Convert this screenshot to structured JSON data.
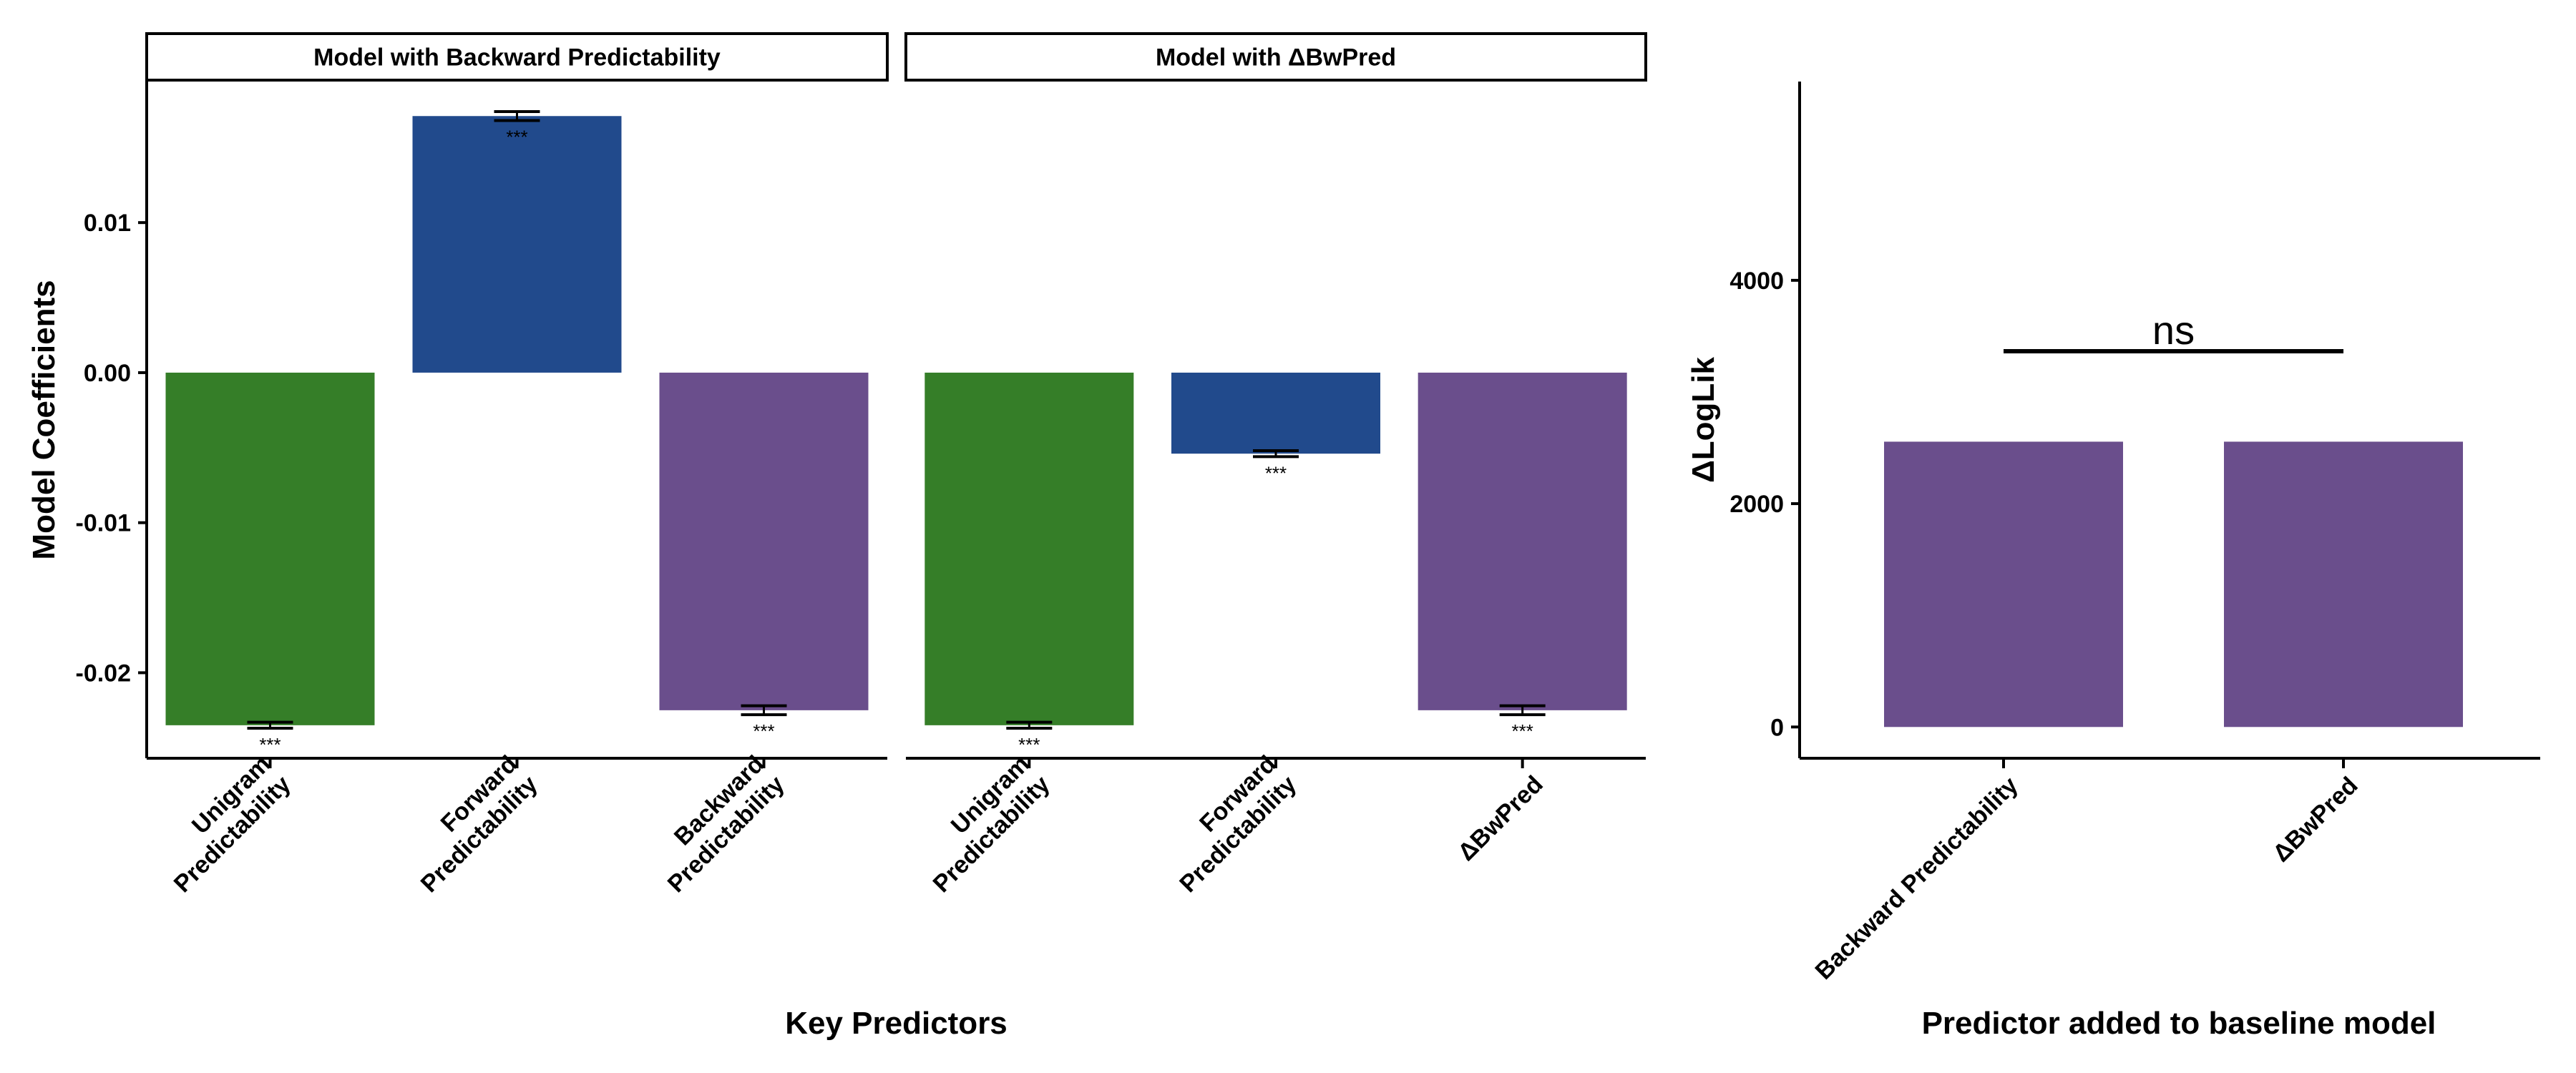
{
  "chart_data": [
    {
      "type": "bar",
      "facets": [
        {
          "title": "Model with Backward Predictability",
          "categories": [
            "Unigram\nPredictability",
            "Forward\nPredictability",
            "Backward\nPredictability"
          ],
          "values": [
            -0.0235,
            0.0171,
            -0.0225
          ],
          "errors": [
            0.0002,
            0.0003,
            0.0003
          ],
          "significance": [
            "***",
            "***",
            "***"
          ],
          "colors": [
            "#357E28",
            "#214A8C",
            "#6A4E8C"
          ]
        },
        {
          "title": "Model with ΔBwPred",
          "categories": [
            "Unigram\nPredictability",
            "Forward\nPredictability",
            "ΔBwPred"
          ],
          "values": [
            -0.0235,
            -0.0054,
            -0.0225
          ],
          "errors": [
            0.0002,
            0.0002,
            0.0003
          ],
          "significance": [
            "***",
            "***",
            "***"
          ],
          "colors": [
            "#357E28",
            "#214A8C",
            "#6A4E8C"
          ]
        }
      ],
      "ylabel": "Model Coefficients",
      "xlabel": "Key Predictors",
      "ylim": [
        -0.0257,
        0.0194
      ],
      "yticks": [
        0.01,
        0.0,
        -0.01,
        -0.02
      ],
      "ytick_labels": [
        "0.01",
        "0.00",
        "-0.01",
        "-0.02"
      ],
      "grid": false
    },
    {
      "type": "bar",
      "categories": [
        "Backward Predictability",
        "ΔBwPred"
      ],
      "values": [
        2555,
        2555
      ],
      "colors": [
        "#6A4E8C",
        "#6A4E8C"
      ],
      "comparison": {
        "label": "ns",
        "value": 3365
      },
      "ylabel": "ΔLogLik",
      "xlabel": "Predictor added to baseline model",
      "ylim": [
        -280,
        5780
      ],
      "yticks": [
        0,
        2000,
        4000
      ],
      "ytick_labels": [
        "0",
        "2000",
        "4000"
      ],
      "grid": false
    }
  ]
}
